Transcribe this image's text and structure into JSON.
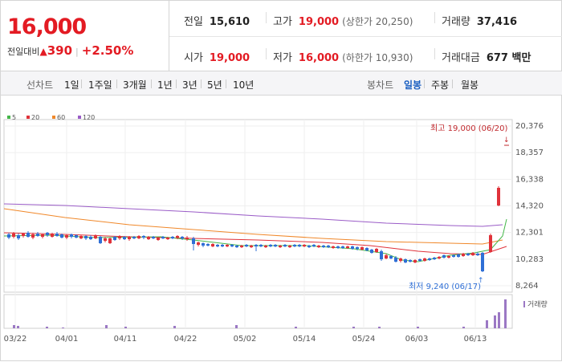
{
  "price": {
    "current": "16,000",
    "change_label": "전일대비",
    "change_triangle": "▲",
    "change": "390",
    "change_pct": "+2.50%"
  },
  "stats": {
    "prev_close": {
      "label": "전일",
      "value": "15,610"
    },
    "high": {
      "label": "고가",
      "value": "19,000",
      "sub": "(상한가 20,250)"
    },
    "volume": {
      "label": "거래량",
      "value": "37,416"
    },
    "open": {
      "label": "시가",
      "value": "19,000"
    },
    "low": {
      "label": "저가",
      "value": "16,000",
      "sub": "(하한가 10,930)"
    },
    "amount": {
      "label": "거래대금",
      "value": "677 백만"
    }
  },
  "tabs": {
    "line_label": "선차트",
    "periods": [
      "1일",
      "1주일",
      "3개월",
      "1년",
      "3년",
      "5년",
      "10년"
    ],
    "candle_label": "봉차트",
    "candles": [
      "일봉",
      "주봉",
      "월봉"
    ],
    "active_candle": "일봉"
  },
  "chart_data": {
    "type": "candlestick",
    "legend": [
      {
        "name": "5",
        "color": "#44b649"
      },
      {
        "name": "20",
        "color": "#e0323a"
      },
      {
        "name": "60",
        "color": "#f0882a"
      },
      {
        "name": "120",
        "color": "#9a5cc7"
      }
    ],
    "y_ticks": [
      "20,376",
      "18,357",
      "16,338",
      "14,320",
      "12,301",
      "10,283",
      "8,264"
    ],
    "y_tick_values": [
      20376,
      18357,
      16338,
      14320,
      12301,
      10283,
      8264
    ],
    "x_labels": [
      "03/22",
      "04/01",
      "04/11",
      "04/22",
      "05/02",
      "05/14",
      "05/24",
      "06/03",
      "06/13"
    ],
    "high_annotation": "최고 19,000 (06/20)",
    "low_annotation": "최저 9,240 (06/17)",
    "volume_legend": "거래량",
    "colors": {
      "up": "#e0323a",
      "down": "#2f6fd6",
      "volume": "#9b78c4",
      "ma5": "#44b649",
      "ma20": "#e0323a",
      "ma60": "#f0882a",
      "ma120": "#9a5cc7"
    }
  }
}
